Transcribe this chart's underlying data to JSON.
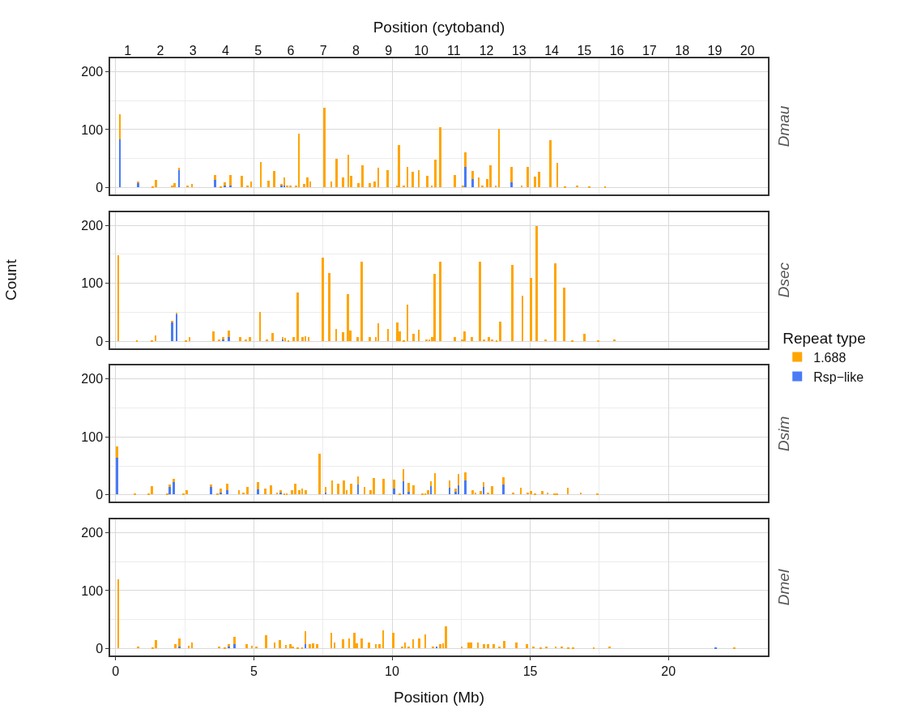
{
  "chart_data": [
    {
      "type": "bar",
      "stacked": true,
      "title": "Dmau",
      "x2label": "Position (cytoband)",
      "legend_title": "Repeat type",
      "legend": "right",
      "grid": true,
      "tick_labels": "y",
      "xlim": [
        -0.2,
        23.6
      ],
      "xticks": [
        0,
        5,
        10,
        15,
        20
      ],
      "ylim": [
        -12,
        223
      ],
      "yticks": [
        0,
        100,
        200
      ],
      "x2lim": [
        0.46,
        20.63
      ],
      "x2ticks": [
        1,
        2,
        3,
        4,
        5,
        6,
        7,
        8,
        9,
        10,
        11,
        12,
        13,
        14,
        15,
        16,
        17,
        18,
        19,
        20
      ],
      "x": [
        0.15,
        0.82,
        1.34,
        1.45,
        2.04,
        2.13,
        2.29,
        2.6,
        2.76,
        3.6,
        3.8,
        3.95,
        4.15,
        4.57,
        4.76,
        4.9,
        5.25,
        5.54,
        5.73,
        5.99,
        6.1,
        6.21,
        6.33,
        6.53,
        6.63,
        6.81,
        6.93,
        7.04,
        7.55,
        7.8,
        8.0,
        8.23,
        8.42,
        8.53,
        8.79,
        8.93,
        9.19,
        9.37,
        9.5,
        9.84,
        10.18,
        10.25,
        10.42,
        10.56,
        10.75,
        10.97,
        11.27,
        11.44,
        11.57,
        11.74,
        12.28,
        12.56,
        12.65,
        12.91,
        13.14,
        13.27,
        13.44,
        13.56,
        13.75,
        13.87,
        14.33,
        14.69,
        14.9,
        15.17,
        15.32,
        15.72,
        15.98,
        16.25,
        16.69,
        17.14,
        17.71
      ],
      "series": [
        {
          "name": "Rsp−like",
          "color": "#4a7bf7",
          "values": [
            83,
            8,
            null,
            null,
            null,
            null,
            30,
            null,
            null,
            13,
            null,
            3,
            4,
            null,
            null,
            null,
            null,
            null,
            null,
            4,
            4,
            null,
            null,
            null,
            null,
            null,
            null,
            null,
            null,
            null,
            null,
            null,
            null,
            null,
            null,
            null,
            null,
            null,
            null,
            null,
            null,
            null,
            null,
            null,
            null,
            null,
            null,
            null,
            null,
            null,
            null,
            null,
            36,
            14,
            null,
            null,
            null,
            null,
            null,
            null,
            9,
            null,
            null,
            null,
            null,
            null,
            null,
            null,
            null,
            null,
            null
          ]
        },
        {
          "name": "1.688",
          "color": "#ffa500",
          "values": [
            43,
            2,
            2,
            13,
            3,
            7,
            4,
            4,
            6,
            8,
            2,
            6,
            17,
            20,
            3,
            10,
            44,
            12,
            29,
            1,
            13,
            3,
            3,
            4,
            93,
            6,
            17,
            10,
            138,
            10,
            50,
            17,
            57,
            20,
            8,
            39,
            8,
            11,
            34,
            30,
            4,
            73,
            3,
            36,
            27,
            30,
            20,
            4,
            48,
            104,
            21,
            3,
            25,
            14,
            18,
            3,
            14,
            38,
            3,
            101,
            26,
            3,
            36,
            19,
            27,
            81,
            42,
            1,
            4,
            1,
            1
          ]
        }
      ]
    },
    {
      "type": "bar",
      "stacked": true,
      "title": "Dsec",
      "ylabel": "Count",
      "grid": true,
      "tick_labels": "y",
      "xlim": [
        -0.2,
        23.6
      ],
      "xticks": [
        0,
        5,
        10,
        15,
        20
      ],
      "ylim": [
        -12,
        223
      ],
      "yticks": [
        0,
        100,
        200
      ],
      "x": [
        0.09,
        0.77,
        1.31,
        1.44,
        2.05,
        2.2,
        2.55,
        2.67,
        3.54,
        3.75,
        3.89,
        4.09,
        4.51,
        4.71,
        4.85,
        5.22,
        5.48,
        5.68,
        6.04,
        6.13,
        6.25,
        6.44,
        6.58,
        6.76,
        6.86,
        6.98,
        7.49,
        7.72,
        7.98,
        8.22,
        8.4,
        8.49,
        8.76,
        8.91,
        9.2,
        9.41,
        9.5,
        9.85,
        10.19,
        10.27,
        10.42,
        10.56,
        10.78,
        10.97,
        11.24,
        11.35,
        11.46,
        11.54,
        11.74,
        12.28,
        12.54,
        12.63,
        12.88,
        13.17,
        13.33,
        13.5,
        13.61,
        13.78,
        13.92,
        14.35,
        14.72,
        15.03,
        15.24,
        15.55,
        15.91,
        16.22,
        16.53,
        16.96,
        17.45,
        18.04
      ],
      "series": [
        {
          "color": "#4a7bf7",
          "values": [
            null,
            null,
            null,
            null,
            34,
            47,
            null,
            null,
            null,
            null,
            3,
            7,
            null,
            null,
            null,
            null,
            null,
            null,
            3,
            null,
            null,
            null,
            null,
            null,
            null,
            null,
            null,
            null,
            null,
            null,
            null,
            null,
            null,
            null,
            null,
            null,
            null,
            null,
            null,
            null,
            null,
            null,
            null,
            null,
            null,
            null,
            null,
            null,
            null,
            null,
            null,
            null,
            null,
            null,
            null,
            null,
            null,
            null,
            null,
            null,
            null,
            null,
            null,
            null,
            null,
            null,
            null,
            null,
            null,
            null
          ]
        },
        {
          "color": "#ffa500",
          "values": [
            149,
            2,
            1,
            11,
            2,
            2,
            2,
            8,
            17,
            4,
            4,
            12,
            8,
            4,
            8,
            51,
            4,
            15,
            4,
            6,
            1,
            8,
            84,
            7,
            9,
            8,
            145,
            118,
            21,
            16,
            81,
            19,
            7,
            137,
            8,
            8,
            32,
            21,
            33,
            18,
            1,
            64,
            13,
            20,
            4,
            4,
            7,
            116,
            137,
            8,
            3,
            18,
            7,
            138,
            4,
            7,
            4,
            2,
            34,
            132,
            79,
            110,
            199,
            3,
            135,
            93,
            1,
            13,
            2,
            3
          ]
        }
      ]
    },
    {
      "type": "bar",
      "stacked": true,
      "title": "Dsim",
      "grid": true,
      "tick_labels": "y",
      "xlim": [
        -0.2,
        23.6
      ],
      "xticks": [
        0,
        5,
        10,
        15,
        20
      ],
      "ylim": [
        -12,
        223
      ],
      "yticks": [
        0,
        100,
        200
      ],
      "x": [
        0.05,
        0.69,
        1.2,
        1.31,
        1.87,
        1.96,
        2.1,
        2.46,
        2.58,
        3.44,
        3.68,
        3.8,
        4.03,
        4.46,
        4.63,
        4.76,
        5.14,
        5.41,
        5.62,
        5.84,
        5.98,
        6.1,
        6.19,
        6.39,
        6.5,
        6.64,
        6.75,
        6.87,
        7.38,
        7.6,
        7.83,
        8.06,
        8.25,
        8.36,
        8.53,
        8.77,
        9.0,
        9.22,
        9.34,
        9.7,
        10.08,
        10.27,
        10.41,
        10.6,
        10.78,
        11.09,
        11.2,
        11.31,
        11.41,
        11.55,
        12.08,
        12.31,
        12.4,
        12.66,
        12.91,
        13.02,
        13.2,
        13.31,
        13.48,
        13.61,
        14.02,
        14.38,
        14.66,
        14.9,
        15.03,
        15.17,
        15.43,
        15.63,
        15.88,
        15.97,
        16.36,
        16.83,
        17.42
      ],
      "series": [
        {
          "color": "#4a7bf7",
          "values": [
            64,
            null,
            null,
            null,
            null,
            13,
            21,
            null,
            null,
            13,
            null,
            4,
            7,
            null,
            null,
            null,
            9,
            null,
            null,
            null,
            3,
            null,
            null,
            null,
            null,
            null,
            null,
            null,
            null,
            4,
            null,
            null,
            null,
            null,
            null,
            18,
            null,
            null,
            null,
            null,
            10,
            null,
            23,
            5,
            null,
            null,
            null,
            null,
            15,
            null,
            12,
            5,
            16,
            24,
            null,
            null,
            null,
            13,
            null,
            null,
            17,
            null,
            null,
            null,
            null,
            null,
            null,
            null,
            null,
            null,
            null,
            null,
            null
          ]
        },
        {
          "color": "#ffa500",
          "values": [
            19,
            1,
            1,
            15,
            2,
            5,
            6,
            2,
            7,
            4,
            2,
            6,
            12,
            8,
            3,
            13,
            12,
            10,
            16,
            3,
            4,
            2,
            2,
            8,
            19,
            8,
            10,
            8,
            70,
            9,
            24,
            19,
            24,
            7,
            19,
            14,
            13,
            7,
            29,
            27,
            16,
            2,
            21,
            15,
            16,
            2,
            2,
            7,
            8,
            37,
            12,
            5,
            20,
            15,
            7,
            3,
            6,
            8,
            4,
            15,
            13,
            4,
            12,
            3,
            6,
            1,
            6,
            3,
            1,
            1,
            12,
            3,
            2
          ]
        }
      ]
    },
    {
      "type": "bar",
      "stacked": true,
      "title": "Dmel",
      "grid": true,
      "xlabel": "Position (Mb)",
      "xlim": [
        -0.2,
        23.6
      ],
      "xticks": [
        0,
        5,
        10,
        15,
        20
      ],
      "ylim": [
        -12,
        223
      ],
      "yticks": [
        0,
        100,
        200
      ],
      "x": [
        0.09,
        0.82,
        1.34,
        1.45,
        2.15,
        2.3,
        2.64,
        2.76,
        3.74,
        3.94,
        4.09,
        4.29,
        4.73,
        4.93,
        5.08,
        5.45,
        5.75,
        5.93,
        6.16,
        6.32,
        6.42,
        6.58,
        6.75,
        6.86,
        7.03,
        7.14,
        7.29,
        7.8,
        7.92,
        8.23,
        8.45,
        8.63,
        8.73,
        8.91,
        9.17,
        9.41,
        9.55,
        9.68,
        10.05,
        10.37,
        10.47,
        10.61,
        10.76,
        10.98,
        11.2,
        11.47,
        11.61,
        11.74,
        11.85,
        11.95,
        12.52,
        12.76,
        12.85,
        13.11,
        13.33,
        13.48,
        13.67,
        13.88,
        14.07,
        14.5,
        14.87,
        15.12,
        15.38,
        15.58,
        15.92,
        16.14,
        16.37,
        16.56,
        17.3,
        17.88,
        21.7,
        22.38
      ],
      "series": [
        {
          "color": "#4a7bf7",
          "values": [
            null,
            null,
            null,
            null,
            null,
            4,
            null,
            null,
            null,
            null,
            4,
            8,
            null,
            null,
            null,
            null,
            null,
            null,
            null,
            null,
            null,
            null,
            null,
            7,
            null,
            null,
            null,
            null,
            null,
            null,
            null,
            null,
            null,
            null,
            null,
            null,
            null,
            null,
            null,
            null,
            null,
            null,
            null,
            null,
            null,
            null,
            3,
            null,
            null,
            null,
            null,
            null,
            null,
            null,
            null,
            null,
            null,
            null,
            null,
            null,
            null,
            null,
            null,
            null,
            null,
            null,
            null,
            null,
            null,
            null,
            1,
            null
          ]
        },
        {
          "color": "#ffa500",
          "values": [
            120,
            3,
            1,
            14,
            7,
            14,
            5,
            10,
            3,
            2,
            4,
            12,
            7,
            5,
            3,
            23,
            10,
            14,
            6,
            7,
            4,
            2,
            2,
            23,
            8,
            9,
            7,
            27,
            11,
            16,
            18,
            27,
            9,
            17,
            10,
            7,
            7,
            31,
            27,
            3,
            10,
            3,
            16,
            18,
            24,
            4,
            null,
            7,
            9,
            39,
            4,
            10,
            11,
            10,
            7,
            7,
            7,
            4,
            13,
            11,
            7,
            4,
            2,
            3,
            3,
            3,
            2,
            1,
            1,
            3,
            null,
            1
          ]
        }
      ]
    }
  ]
}
